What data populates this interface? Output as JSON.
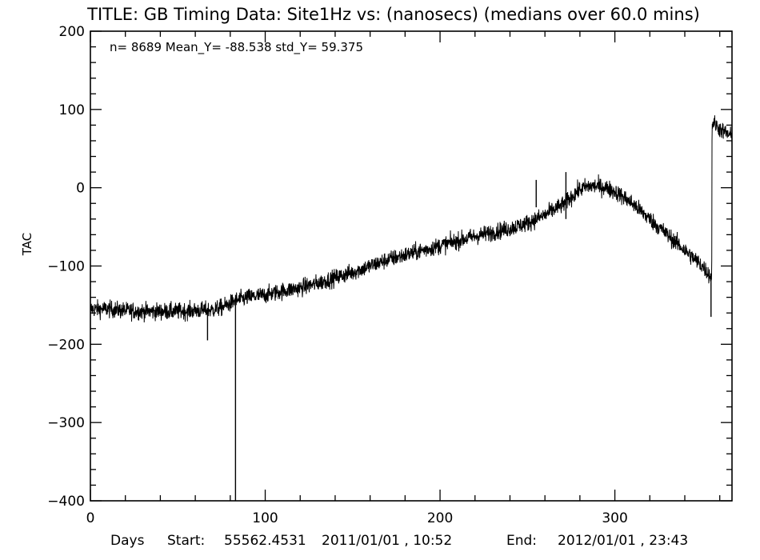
{
  "title": "TITLE: GB Timing Data: Site1Hz vs: (nanosecs) (medians over 60.0 mins)",
  "stats": {
    "n": "8689",
    "mean_y": "-88.538",
    "std_y": "59.375",
    "text": "n=  8689 Mean_Y= -88.538 std_Y=  59.375"
  },
  "footer": {
    "days_label": "Days",
    "start_label": "Start:",
    "start_mjd": "55562.4531",
    "start_date": "2011/01/01 , 10:52",
    "end_label": "End:",
    "end_date": "2012/01/01 , 23:43"
  },
  "chart_data": {
    "type": "line",
    "title": "TITLE: GB Timing Data: Site1Hz vs: (nanosecs) (medians over 60.0 mins)",
    "xlabel": "Days",
    "ylabel": "TAC",
    "xlim": [
      0,
      367
    ],
    "ylim": [
      -400,
      200
    ],
    "x_ticks": [
      0,
      100,
      200,
      300
    ],
    "y_ticks": [
      -400,
      -300,
      -200,
      -100,
      0,
      100,
      200
    ],
    "x_tick_labels": [
      "0",
      "100",
      "200",
      "300"
    ],
    "y_tick_labels": [
      "−400",
      "−300",
      "−200",
      "−100",
      "0",
      "100",
      "200"
    ],
    "grid": false,
    "line_color": "#000000",
    "noise_amplitude": 10,
    "series": [
      {
        "trend": {
          "x": [
            0,
            10,
            20,
            30,
            40,
            50,
            60,
            70,
            75,
            80,
            82,
            90,
            100,
            110,
            120,
            130,
            140,
            150,
            160,
            170,
            180,
            190,
            200,
            210,
            220,
            230,
            240,
            250,
            255,
            260,
            265,
            270,
            275,
            280,
            285,
            290,
            295,
            300,
            305,
            310,
            320,
            330,
            340,
            350,
            355.4,
            355.6,
            360,
            367
          ],
          "y": [
            -155,
            -155,
            -157,
            -158,
            -158,
            -158,
            -157,
            -156,
            -153,
            -148,
            -145,
            -140,
            -137,
            -132,
            -128,
            -122,
            -115,
            -108,
            -100,
            -92,
            -86,
            -80,
            -74,
            -68,
            -62,
            -57,
            -52,
            -45,
            -40,
            -35,
            -28,
            -22,
            -12,
            -2,
            2,
            2,
            0,
            -5,
            -12,
            -20,
            -40,
            -60,
            -80,
            -100,
            -115,
            85,
            75,
            65
          ]
        },
        "spikes": [
          {
            "x": 67,
            "y_min": -195,
            "y_max": -155
          },
          {
            "x": 83,
            "y_min": -400,
            "y_max": -140
          },
          {
            "x": 255,
            "y_min": -25,
            "y_max": 10
          },
          {
            "x": 272,
            "y_min": -40,
            "y_max": 20
          },
          {
            "x": 355,
            "y_min": -165,
            "y_max": -110
          }
        ]
      }
    ]
  }
}
